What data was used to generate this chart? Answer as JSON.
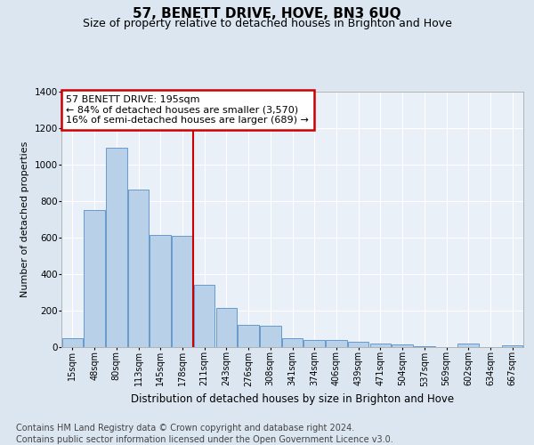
{
  "title": "57, BENETT DRIVE, HOVE, BN3 6UQ",
  "subtitle": "Size of property relative to detached houses in Brighton and Hove",
  "xlabel": "Distribution of detached houses by size in Brighton and Hove",
  "ylabel": "Number of detached properties",
  "categories": [
    "15sqm",
    "48sqm",
    "80sqm",
    "113sqm",
    "145sqm",
    "178sqm",
    "211sqm",
    "243sqm",
    "276sqm",
    "308sqm",
    "341sqm",
    "374sqm",
    "406sqm",
    "439sqm",
    "471sqm",
    "504sqm",
    "537sqm",
    "569sqm",
    "602sqm",
    "634sqm",
    "667sqm"
  ],
  "values": [
    50,
    750,
    1090,
    860,
    615,
    610,
    340,
    215,
    120,
    115,
    50,
    40,
    40,
    30,
    20,
    15,
    5,
    2,
    20,
    2,
    10
  ],
  "bar_color": "#b8d0e8",
  "bar_edge_color": "#6699cc",
  "vline_x": 5.5,
  "vline_color": "#cc0000",
  "annotation_line1": "57 BENETT DRIVE: 195sqm",
  "annotation_line2": "← 84% of detached houses are smaller (3,570)",
  "annotation_line3": "16% of semi-detached houses are larger (689) →",
  "annotation_box_color": "#cc0000",
  "ylim": [
    0,
    1400
  ],
  "yticks": [
    0,
    200,
    400,
    600,
    800,
    1000,
    1200,
    1400
  ],
  "footer_line1": "Contains HM Land Registry data © Crown copyright and database right 2024.",
  "footer_line2": "Contains public sector information licensed under the Open Government Licence v3.0.",
  "bg_color": "#dce6f0",
  "plot_bg_color": "#eaf0f8",
  "grid_color": "#ffffff",
  "title_fontsize": 11,
  "subtitle_fontsize": 9,
  "footer_fontsize": 7,
  "ylabel_fontsize": 8,
  "xlabel_fontsize": 8.5,
  "annot_fontsize": 8,
  "tick_fontsize": 7
}
